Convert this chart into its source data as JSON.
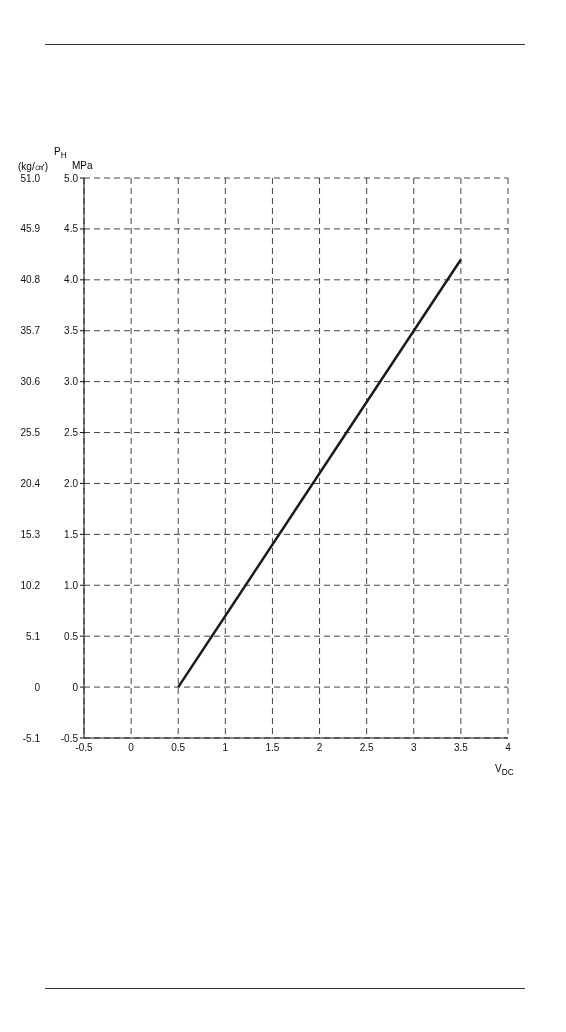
{
  "chart_data": {
    "type": "line",
    "title": "P$_{H}$",
    "ylabel": "MPa",
    "y2label": "(kg/㎠)",
    "xlabel": "V$_{DC}$",
    "series": [
      {
        "color": "#1a1a1a",
        "x": [
          0.5,
          3.5
        ],
        "values": [
          0,
          4.2
        ]
      }
    ],
    "xlim": [
      -0.5,
      4
    ],
    "xticks": [
      -0.5,
      0,
      0.5,
      1,
      1.5,
      2,
      2.5,
      3,
      3.5,
      4
    ],
    "ylim": [
      -0.5,
      5
    ],
    "yticks": [
      -0.5,
      0,
      0.5,
      {
        "value": 1,
        "label": "1.0"
      },
      1.5,
      {
        "value": 2,
        "label": "2.0"
      },
      2.5,
      {
        "value": 3,
        "label": "3.0"
      },
      3.5,
      {
        "value": 4,
        "label": "4.0"
      },
      4.5,
      {
        "value": 5,
        "label": "5.0"
      }
    ],
    "y2lim": [
      -5.1,
      51
    ],
    "y2ticks": [
      -5.1,
      0,
      5.1,
      10.2,
      15.3,
      20.4,
      25.5,
      30.6,
      35.7,
      40.8,
      45.9,
      {
        "value": 51,
        "label": "51.0"
      }
    ],
    "grid": true,
    "marker": "none",
    "line_style": "solid"
  }
}
